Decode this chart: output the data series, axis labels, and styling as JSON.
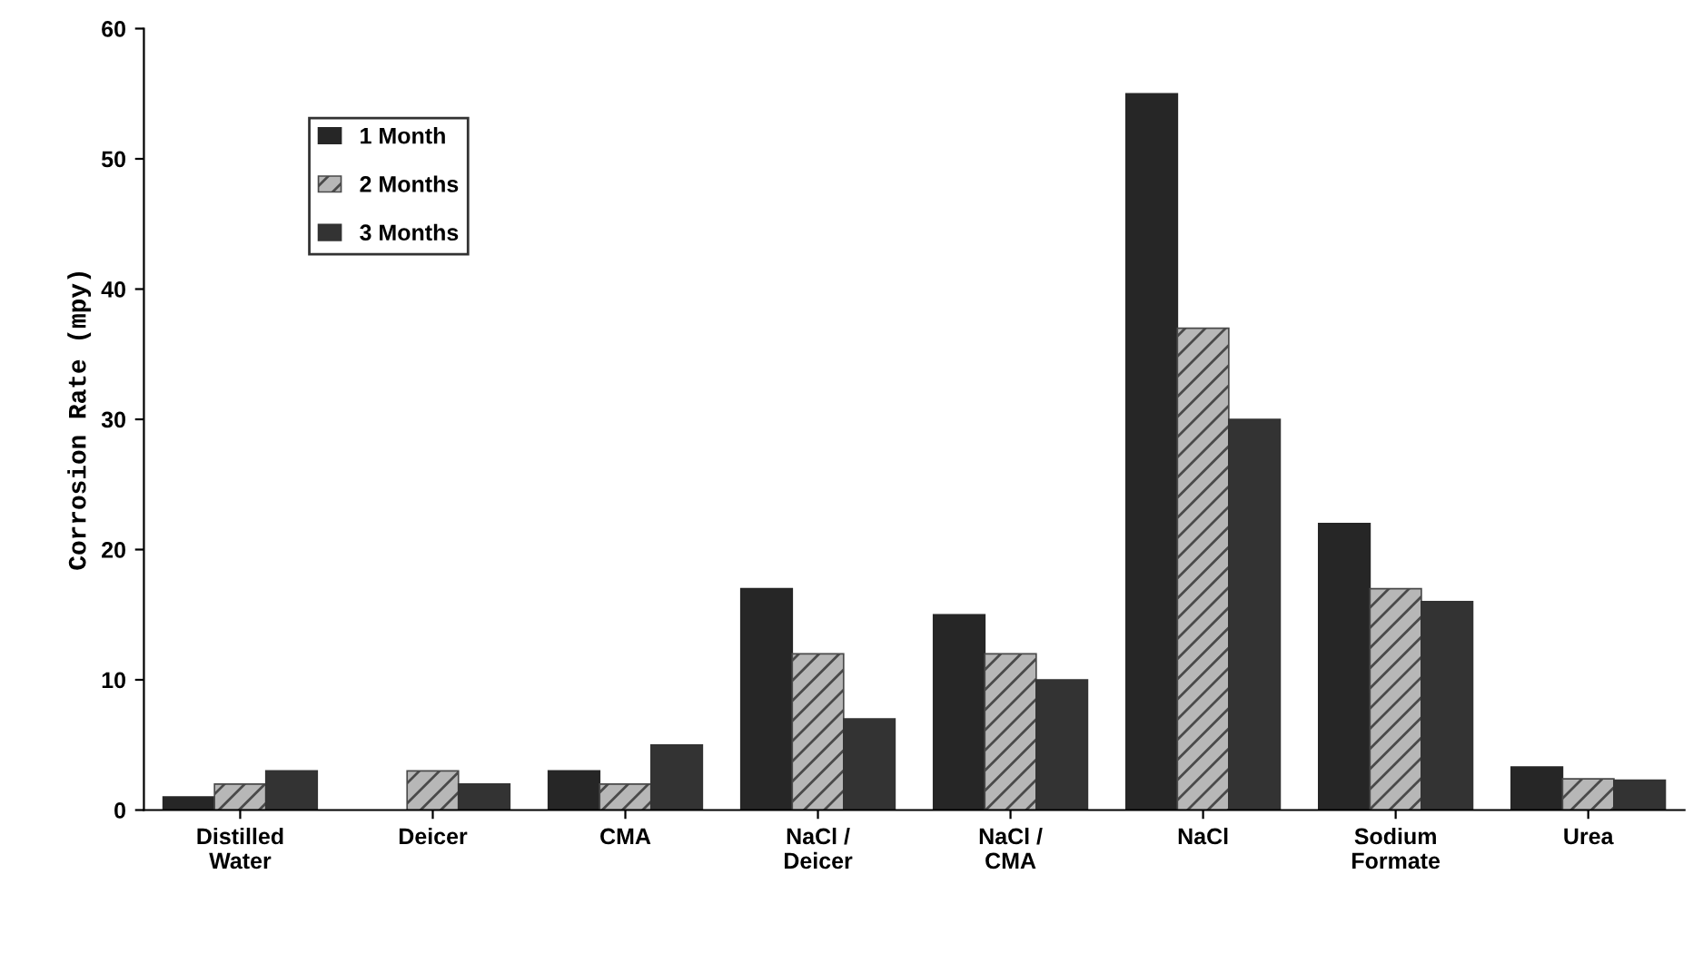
{
  "chart_data": {
    "type": "bar",
    "ylabel": "Corrosion Rate (mpy)",
    "categories": [
      "Distilled\nWater",
      "Deicer",
      "CMA",
      "NaCl /\nDeicer",
      "NaCl /\nCMA",
      "NaCl",
      "Sodium\nFormate",
      "Urea"
    ],
    "series": [
      {
        "name": "1 Month",
        "color": "#262626",
        "values": [
          1,
          null,
          3,
          17,
          15,
          55,
          22,
          3.3
        ]
      },
      {
        "name": "2 Months",
        "color": "#4a4a4a",
        "values": [
          2,
          3,
          2,
          12,
          12,
          37,
          17,
          2.4
        ]
      },
      {
        "name": "3 Months",
        "color": "#333333",
        "values": [
          3,
          2,
          5,
          7,
          10,
          30,
          16,
          2.3
        ]
      }
    ],
    "ylim": [
      0,
      60
    ],
    "yticks": [
      0,
      10,
      20,
      30,
      40,
      50,
      60
    ],
    "grid": false,
    "legend": "top left"
  }
}
